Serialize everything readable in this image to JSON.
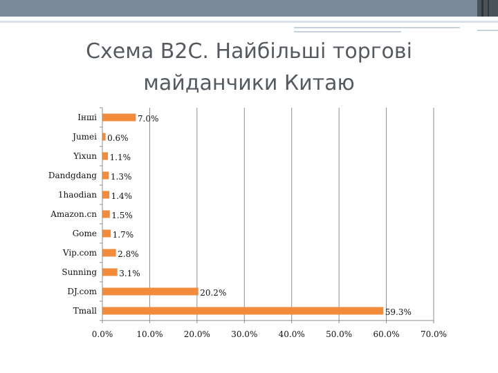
{
  "slide": {
    "title_line1": "Схема B2C. Найбільші торгові",
    "title_line2": "майданчики Китаю"
  },
  "colors": {
    "bar": "#f28b3c",
    "grid": "#8c8c8c",
    "top_band": "#7b8a99"
  },
  "chart_data": {
    "type": "bar",
    "orientation": "horizontal",
    "title": "",
    "xlabel": "",
    "ylabel": "",
    "categories": [
      "Інші",
      "Jumei",
      "Yixun",
      "Dandgdang",
      "1haodian",
      "Amazon.cn",
      "Gome",
      "Vip.com",
      "Sunning",
      "DJ.com",
      "Tmall"
    ],
    "values": [
      7.0,
      0.6,
      1.1,
      1.3,
      1.4,
      1.5,
      1.7,
      2.8,
      3.1,
      20.2,
      59.3
    ],
    "data_labels": [
      "7.0%",
      "0.6%",
      "1.1%",
      "1.3%",
      "1.4%",
      "1.5%",
      "1.7%",
      "2.8%",
      "3.1%",
      "20.2%",
      "59.3%"
    ],
    "x_ticks": [
      0,
      10,
      20,
      30,
      40,
      50,
      60,
      70
    ],
    "x_tick_labels": [
      "0.0%",
      "10.0%",
      "20.0%",
      "30.0%",
      "40.0%",
      "50.0%",
      "60.0%",
      "70.0%"
    ],
    "xlim": [
      0,
      70
    ],
    "grid": true,
    "legend": "none"
  }
}
